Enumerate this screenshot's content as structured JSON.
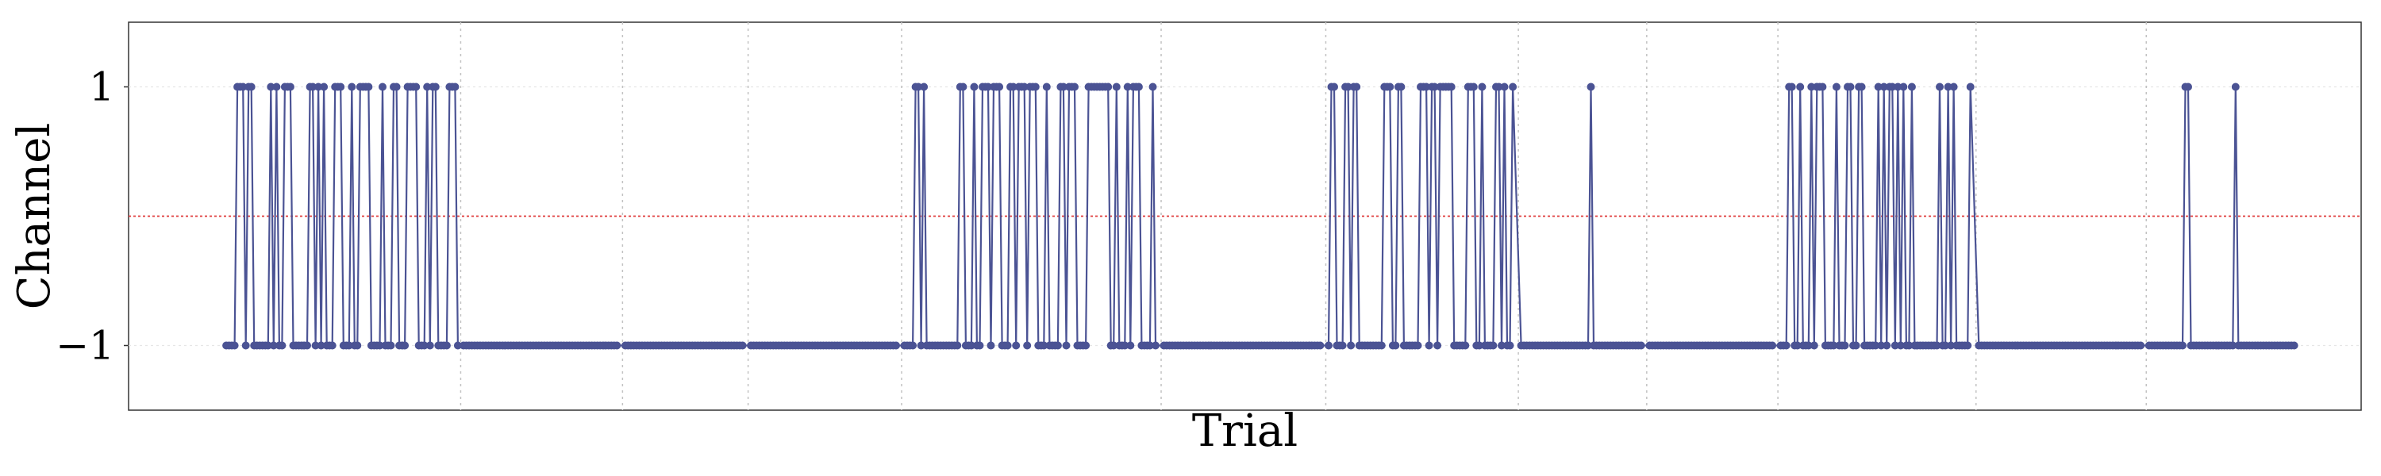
{
  "chart_data": {
    "type": "line",
    "xlabel": "Trial",
    "ylabel": "Channel",
    "ylim": [
      -1.5,
      1.5
    ],
    "xlim": [
      -15,
      785
    ],
    "y_ticks": [
      {
        "value": 1,
        "label": "1"
      },
      {
        "value": -1,
        "label": "−1"
      }
    ],
    "x_tick_labels_shown": false,
    "grid": {
      "x": "dotted vertical lines at block boundaries",
      "y": "faint horizontal at ticks"
    },
    "block_boundaries": [
      104,
      162,
      207,
      262,
      355,
      414,
      483,
      529,
      576,
      647,
      708
    ],
    "reference_line": {
      "y": 0,
      "color": "#e03b3b",
      "style": "dotted"
    },
    "line_color": "#4b5394",
    "segments": [
      {
        "start": 20,
        "end": 103,
        "pattern": "switch",
        "pattern_seed": 3
      },
      {
        "start": 105,
        "end": 160,
        "pattern": "constant",
        "value": -1
      },
      {
        "start": 163,
        "end": 205,
        "pattern": "constant",
        "value": -1
      },
      {
        "start": 208,
        "end": 260,
        "pattern": "constant",
        "value": -1
      },
      {
        "start": 263,
        "end": 353,
        "pattern": "switch",
        "pattern_seed": 7
      },
      {
        "start": 356,
        "end": 412,
        "pattern": "constant",
        "value": -1
      },
      {
        "start": 415,
        "end": 481,
        "pattern": "switch_sparse",
        "pattern_seed": 11
      },
      {
        "start": 484,
        "end": 527,
        "pattern": "constant",
        "value": -1,
        "spikes": [
          509
        ]
      },
      {
        "start": 530,
        "end": 574,
        "pattern": "constant",
        "value": -1
      },
      {
        "start": 577,
        "end": 645,
        "pattern": "switch",
        "pattern_seed": 17
      },
      {
        "start": 648,
        "end": 706,
        "pattern": "constant",
        "value": -1
      },
      {
        "start": 709,
        "end": 761,
        "pattern": "constant",
        "value": -1,
        "spikes": [
          722,
          723,
          740
        ]
      }
    ]
  }
}
